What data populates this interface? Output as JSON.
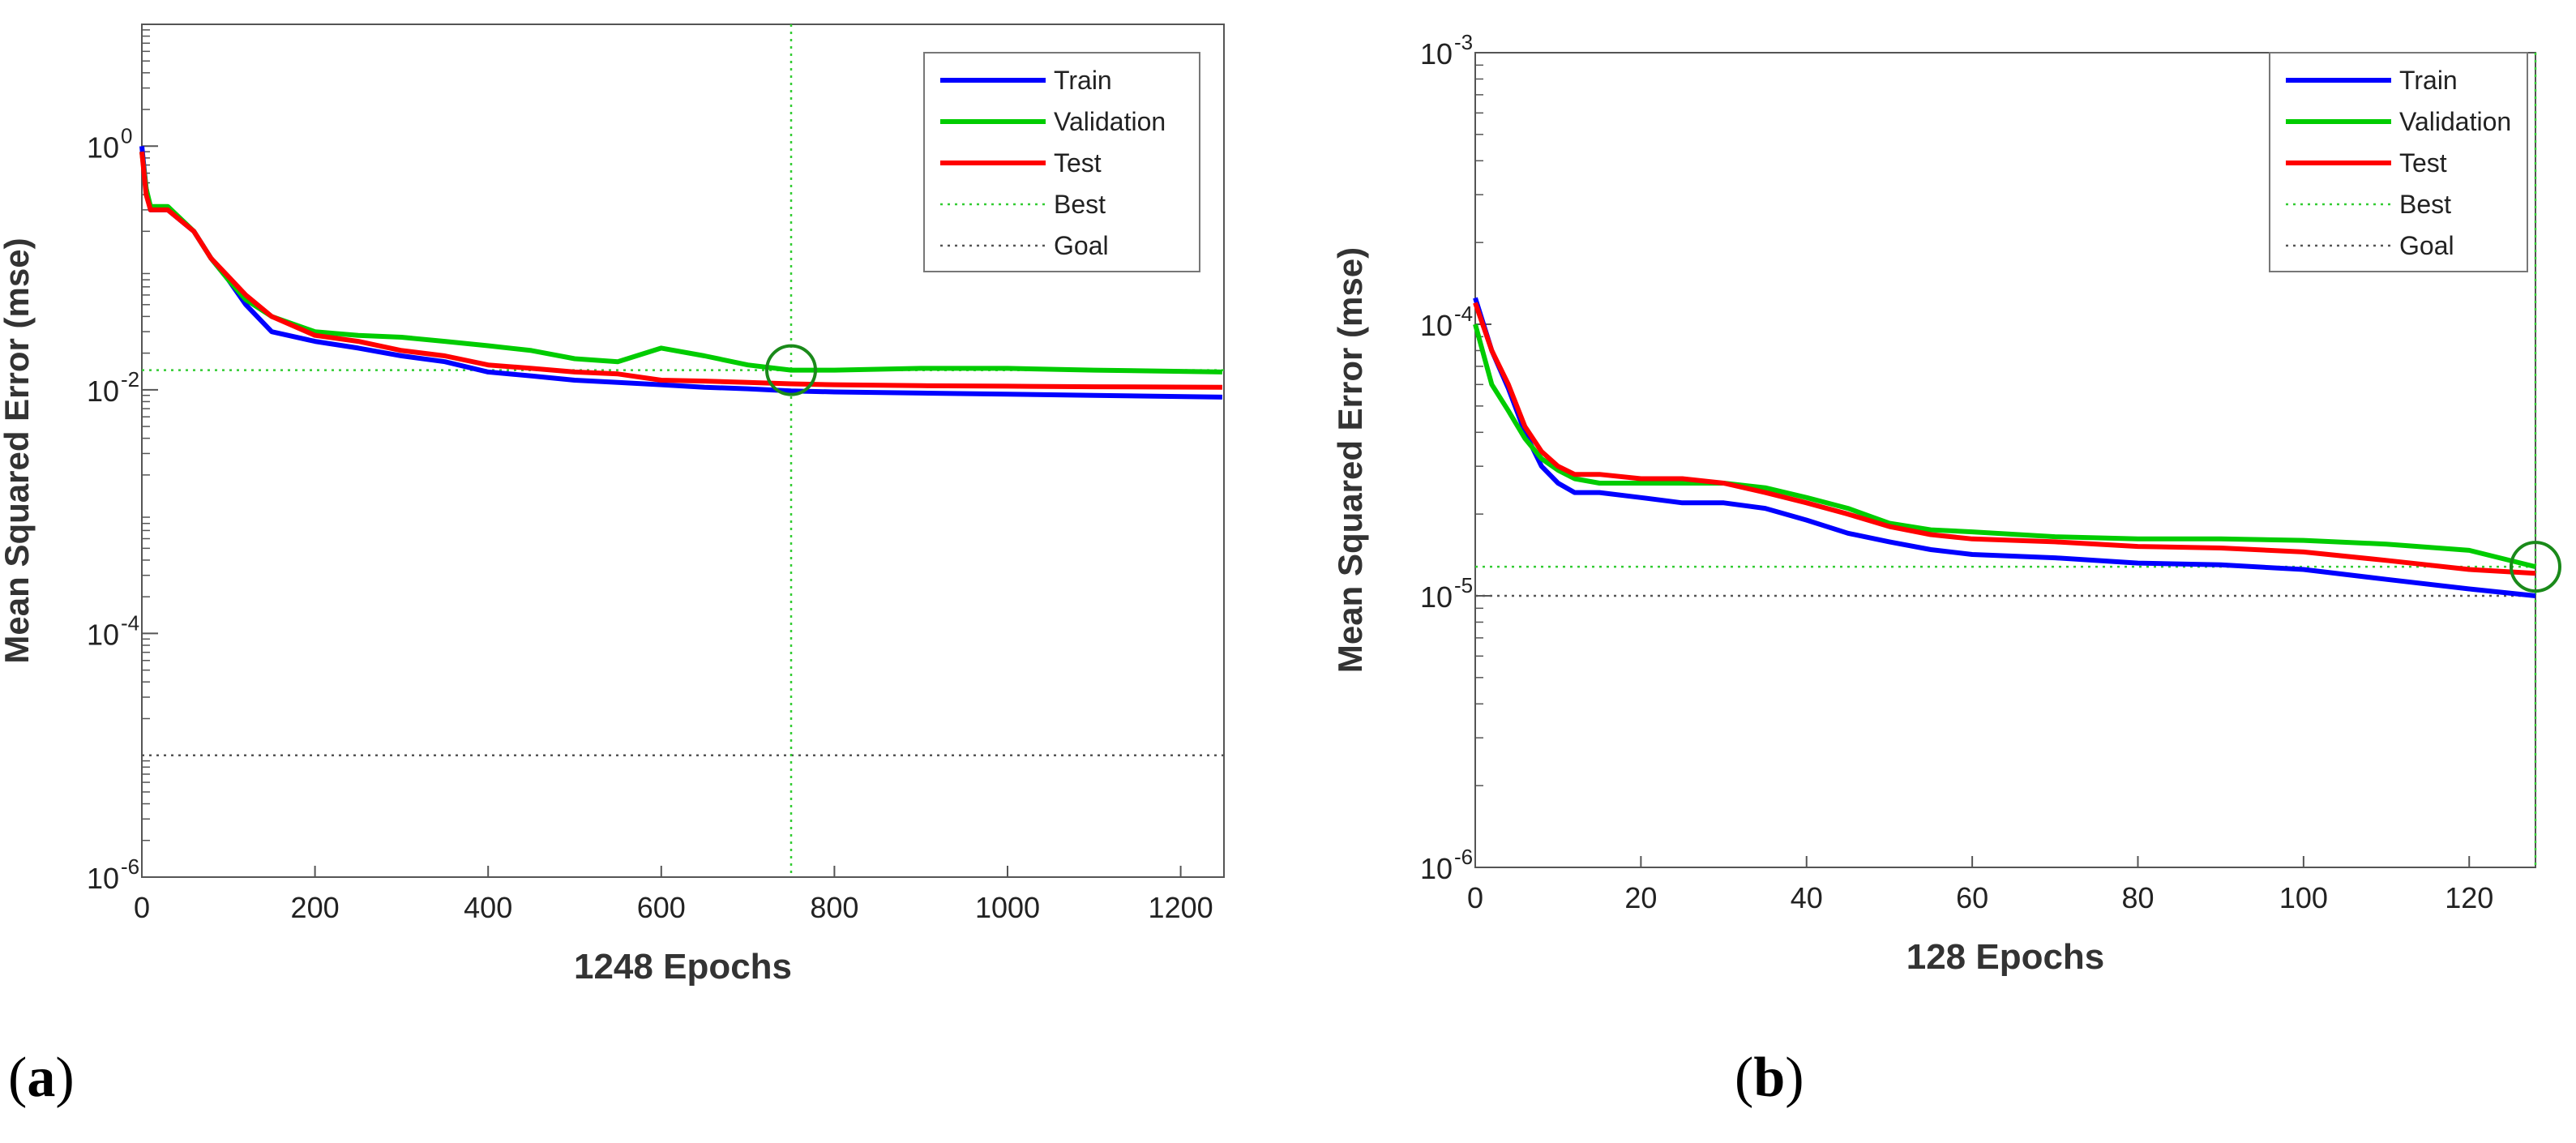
{
  "chart_data": [
    {
      "type": "line",
      "panel": "(a)",
      "panel_letter": "a",
      "xlabel": "1248 Epochs",
      "ylabel": "Mean Squared Error  (mse)",
      "xlim": [
        0,
        1250
      ],
      "ylim_log10": [
        -6,
        1
      ],
      "yscale": "log",
      "x_ticks": [
        0,
        200,
        400,
        600,
        800,
        1000,
        1200
      ],
      "y_ticks": [
        {
          "label": "10",
          "exp": "0",
          "log10": 0
        },
        {
          "label": "10",
          "exp": "-2",
          "log10": -2
        },
        {
          "label": "10",
          "exp": "-4",
          "log10": -4
        },
        {
          "label": "10",
          "exp": "-6",
          "log10": -6
        }
      ],
      "legend": [
        "Train",
        "Validation",
        "Test",
        "Best",
        "Goal"
      ],
      "best": {
        "epoch": 750,
        "value": 0.0145
      },
      "goal": 1e-05,
      "series": [
        {
          "name": "Train",
          "color": "#0000ff",
          "x": [
            0,
            5,
            10,
            30,
            60,
            80,
            100,
            120,
            150,
            200,
            250,
            300,
            350,
            400,
            450,
            500,
            550,
            600,
            650,
            700,
            750,
            800,
            900,
            1000,
            1100,
            1248
          ],
          "y": [
            1.0,
            0.45,
            0.3,
            0.3,
            0.2,
            0.12,
            0.08,
            0.05,
            0.03,
            0.025,
            0.022,
            0.019,
            0.017,
            0.014,
            0.013,
            0.012,
            0.0115,
            0.011,
            0.0105,
            0.0102,
            0.0098,
            0.0096,
            0.0094,
            0.0092,
            0.009,
            0.0087
          ]
        },
        {
          "name": "Validation",
          "color": "#00cc00",
          "x": [
            0,
            5,
            10,
            30,
            60,
            80,
            100,
            120,
            150,
            200,
            250,
            300,
            350,
            400,
            450,
            500,
            550,
            600,
            650,
            700,
            750,
            800,
            900,
            1000,
            1100,
            1248
          ],
          "y": [
            0.9,
            0.45,
            0.32,
            0.32,
            0.2,
            0.12,
            0.08,
            0.055,
            0.04,
            0.03,
            0.028,
            0.027,
            0.025,
            0.023,
            0.021,
            0.018,
            0.017,
            0.022,
            0.019,
            0.016,
            0.0145,
            0.0145,
            0.015,
            0.015,
            0.0145,
            0.014
          ]
        },
        {
          "name": "Test",
          "color": "#ff0000",
          "x": [
            0,
            5,
            10,
            30,
            60,
            80,
            100,
            120,
            150,
            200,
            250,
            300,
            350,
            400,
            450,
            500,
            550,
            600,
            650,
            700,
            750,
            800,
            900,
            1000,
            1100,
            1248
          ],
          "y": [
            0.9,
            0.4,
            0.3,
            0.3,
            0.2,
            0.12,
            0.085,
            0.06,
            0.04,
            0.028,
            0.025,
            0.021,
            0.019,
            0.016,
            0.015,
            0.014,
            0.0135,
            0.012,
            0.0118,
            0.0115,
            0.0112,
            0.011,
            0.0108,
            0.0107,
            0.0106,
            0.0105
          ]
        }
      ]
    },
    {
      "type": "line",
      "panel": "(b)",
      "panel_letter": "b",
      "xlabel": "128 Epochs",
      "ylabel": "Mean Squared Error  (mse)",
      "xlim": [
        0,
        128
      ],
      "ylim_log10": [
        -6,
        -3
      ],
      "yscale": "log",
      "x_ticks": [
        0,
        20,
        40,
        60,
        80,
        100,
        120
      ],
      "y_ticks": [
        {
          "label": "10",
          "exp": "-3",
          "log10": -3
        },
        {
          "label": "10",
          "exp": "-4",
          "log10": -4
        },
        {
          "label": "10",
          "exp": "-5",
          "log10": -5
        },
        {
          "label": "10",
          "exp": "-6",
          "log10": -6
        }
      ],
      "legend": [
        "Train",
        "Validation",
        "Test",
        "Best",
        "Goal"
      ],
      "best": {
        "epoch": 128,
        "value": 1.28e-05
      },
      "goal": 1e-05,
      "series": [
        {
          "name": "Train",
          "color": "#0000ff",
          "x": [
            0,
            2,
            4,
            6,
            8,
            10,
            12,
            15,
            20,
            25,
            30,
            35,
            40,
            45,
            50,
            55,
            60,
            70,
            80,
            90,
            100,
            110,
            120,
            128
          ],
          "y": [
            0.000125,
            8e-05,
            5.8e-05,
            4e-05,
            3e-05,
            2.6e-05,
            2.4e-05,
            2.4e-05,
            2.3e-05,
            2.2e-05,
            2.2e-05,
            2.1e-05,
            1.9e-05,
            1.7e-05,
            1.58e-05,
            1.48e-05,
            1.42e-05,
            1.38e-05,
            1.32e-05,
            1.3e-05,
            1.25e-05,
            1.15e-05,
            1.06e-05,
            1e-05
          ]
        },
        {
          "name": "Validation",
          "color": "#00cc00",
          "x": [
            0,
            2,
            4,
            6,
            8,
            10,
            12,
            15,
            20,
            25,
            30,
            35,
            40,
            45,
            50,
            55,
            60,
            70,
            80,
            90,
            100,
            110,
            120,
            128
          ],
          "y": [
            0.0001,
            6e-05,
            4.8e-05,
            3.8e-05,
            3.2e-05,
            2.9e-05,
            2.7e-05,
            2.6e-05,
            2.6e-05,
            2.6e-05,
            2.6e-05,
            2.5e-05,
            2.3e-05,
            2.1e-05,
            1.85e-05,
            1.75e-05,
            1.72e-05,
            1.65e-05,
            1.62e-05,
            1.62e-05,
            1.6e-05,
            1.55e-05,
            1.47e-05,
            1.28e-05
          ]
        },
        {
          "name": "Test",
          "color": "#ff0000",
          "x": [
            0,
            2,
            4,
            6,
            8,
            10,
            12,
            15,
            20,
            25,
            30,
            35,
            40,
            45,
            50,
            55,
            60,
            70,
            80,
            90,
            100,
            110,
            120,
            128
          ],
          "y": [
            0.00012,
            8e-05,
            6e-05,
            4.2e-05,
            3.4e-05,
            3e-05,
            2.8e-05,
            2.8e-05,
            2.7e-05,
            2.7e-05,
            2.6e-05,
            2.4e-05,
            2.2e-05,
            2e-05,
            1.8e-05,
            1.68e-05,
            1.62e-05,
            1.58e-05,
            1.52e-05,
            1.5e-05,
            1.45e-05,
            1.35e-05,
            1.25e-05,
            1.21e-05
          ]
        }
      ]
    }
  ]
}
